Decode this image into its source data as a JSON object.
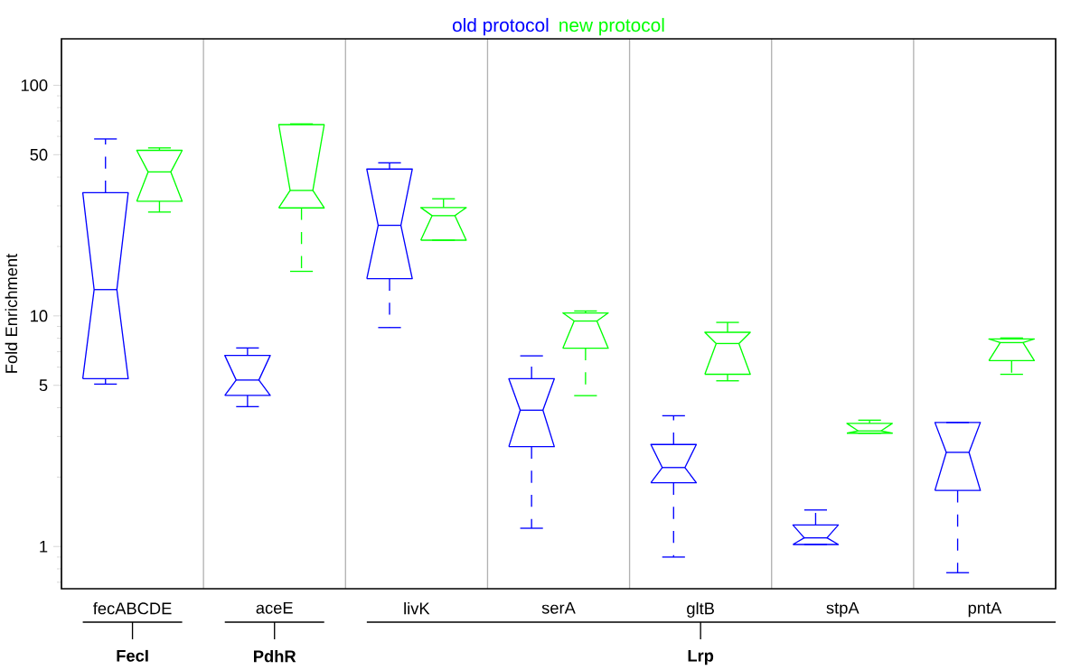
{
  "chart_data": {
    "type": "box",
    "ylabel": "Fold Enrichment",
    "log": "y",
    "grid": "x",
    "legend": "top",
    "categories": [
      "fecABCDE",
      "aceE",
      "livK",
      "serA",
      "gltB",
      "stpA",
      "pntA"
    ],
    "ylim": [
      0.656,
      159
    ],
    "yticks": [
      {
        "value": 0.7,
        "label": null
      },
      {
        "value": 0.8,
        "label": null
      },
      {
        "value": 0.9,
        "label": null
      },
      1,
      {
        "value": 2,
        "label": null
      },
      {
        "value": 3,
        "label": null
      },
      {
        "value": 4,
        "label": null
      },
      5,
      {
        "value": 6,
        "label": null
      },
      {
        "value": 7,
        "label": null
      },
      {
        "value": 8,
        "label": null
      },
      {
        "value": 9,
        "label": null
      },
      10,
      {
        "value": 20,
        "label": null
      },
      {
        "value": 30,
        "label": null
      },
      {
        "value": 40,
        "label": null
      },
      50,
      {
        "value": 60,
        "label": null
      },
      {
        "value": 70,
        "label": null
      },
      {
        "value": 80,
        "label": null
      },
      {
        "value": 90,
        "label": null
      },
      100
    ],
    "series": [
      {
        "name": "old protocol",
        "color": "#0000ff",
        "boxes": [
          {
            "low": 5.06,
            "q1": 5.34,
            "median": 13.0,
            "q3": 34.2,
            "high": 58.5
          },
          {
            "low": 4.04,
            "q1": 4.52,
            "median": 5.27,
            "q3": 6.74,
            "high": 7.26
          },
          {
            "low": 8.9,
            "q1": 14.5,
            "median": 24.7,
            "q3": 43.3,
            "high": 46.1
          },
          {
            "low": 1.2,
            "q1": 2.71,
            "median": 3.9,
            "q3": 5.34,
            "high": 6.71
          },
          {
            "low": 0.9,
            "q1": 1.89,
            "median": 2.2,
            "q3": 2.77,
            "high": 3.69
          },
          {
            "low": 1.02,
            "q1": 1.02,
            "median": 1.09,
            "q3": 1.24,
            "high": 1.44
          },
          {
            "low": 0.77,
            "q1": 1.75,
            "median": 2.56,
            "q3": 3.45,
            "high": 3.45
          }
        ]
      },
      {
        "name": "new protocol",
        "color": "#00ff00",
        "boxes": [
          {
            "low": 28.2,
            "q1": 31.4,
            "median": 42.1,
            "q3": 52.2,
            "high": 53.5
          },
          {
            "low": 15.6,
            "q1": 29.4,
            "median": 35.0,
            "q3": 67.5,
            "high": 68
          },
          {
            "low": 21.3,
            "q1": 21.3,
            "median": 27.2,
            "q3": 29.5,
            "high": 32.2
          },
          {
            "low": 4.51,
            "q1": 7.24,
            "median": 9.5,
            "q3": 10.3,
            "high": 10.5
          },
          {
            "low": 5.23,
            "q1": 5.58,
            "median": 7.59,
            "q3": 8.49,
            "high": 9.37
          },
          {
            "low": 3.1,
            "q1": 3.1,
            "median": 3.17,
            "q3": 3.42,
            "high": 3.53
          },
          {
            "low": 5.58,
            "q1": 6.4,
            "median": 7.66,
            "q3": 7.94,
            "high": 8.02
          }
        ]
      }
    ],
    "annotations": [
      "FecI",
      "PdhR",
      "Lrp"
    ]
  }
}
